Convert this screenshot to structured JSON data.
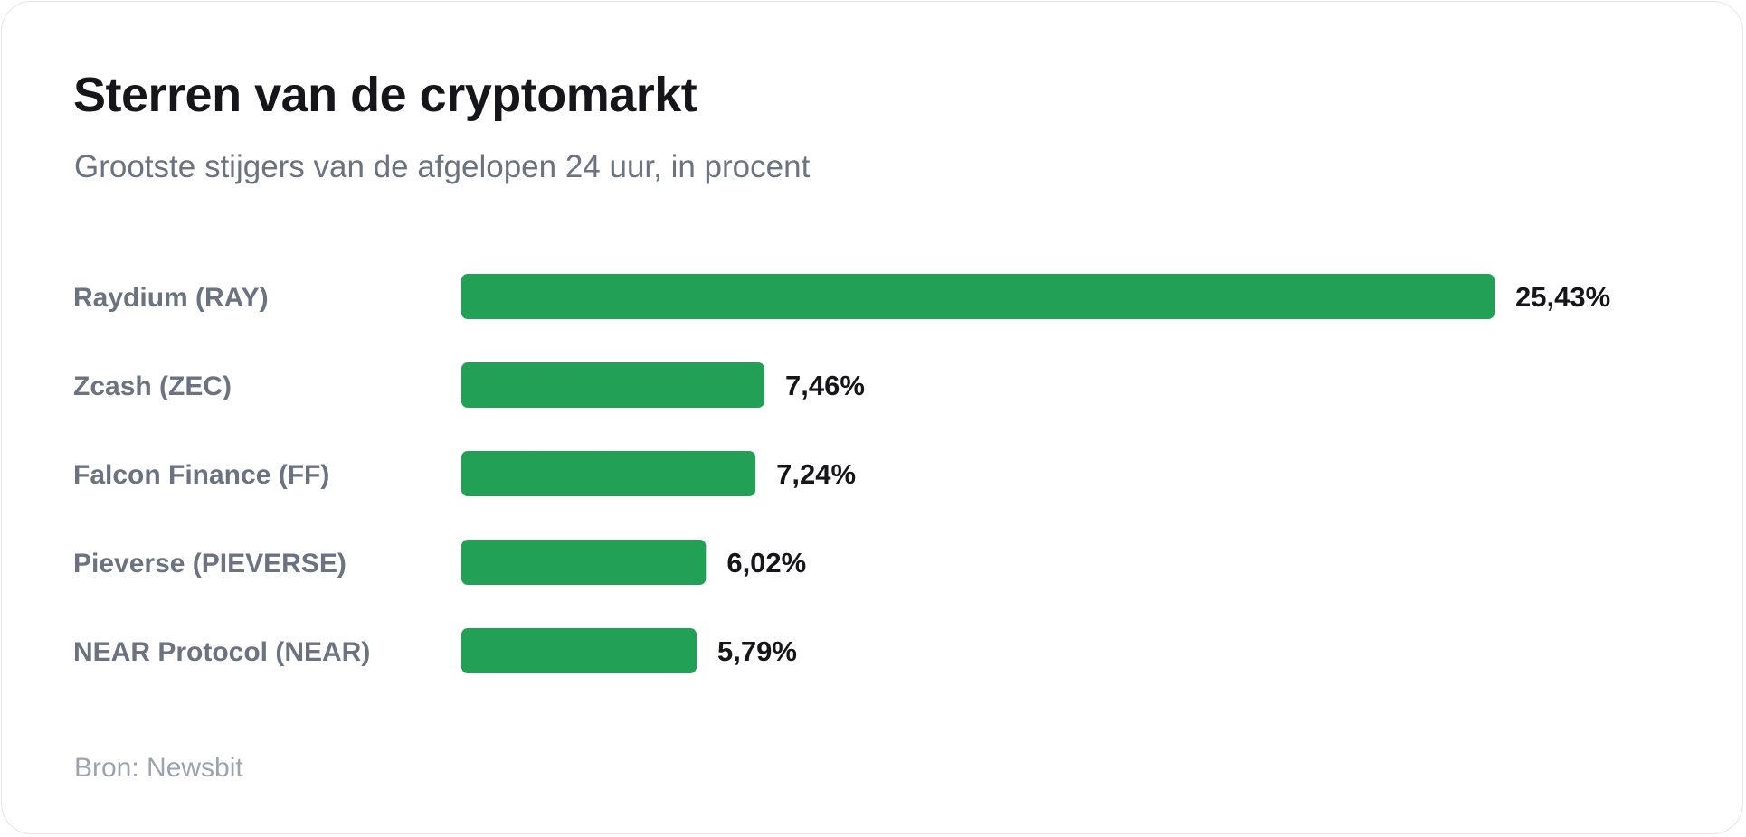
{
  "card": {
    "title": "Sterren van de cryptomarkt",
    "subtitle": "Grootste stijgers van de afgelopen 24 uur, in procent",
    "source": "Bron: Newsbit"
  },
  "colors": {
    "bar": "#22a055",
    "title": "#16161a",
    "category_label": "#6b7280",
    "value_label": "#16161a",
    "source": "#9ca3af"
  },
  "chart_data": {
    "type": "bar",
    "orientation": "horizontal",
    "title": "Sterren van de cryptomarkt",
    "subtitle": "Grootste stijgers van de afgelopen 24 uur, in procent",
    "categories": [
      "Raydium (RAY)",
      "Zcash (ZEC)",
      "Falcon Finance (FF)",
      "Pieverse (PIEVERSE)",
      "NEAR Protocol (NEAR)"
    ],
    "values": [
      25.43,
      7.46,
      7.24,
      6.02,
      5.79
    ],
    "value_labels": [
      "25,43%",
      "7,46%",
      "7,24%",
      "6,02%",
      "5,79%"
    ],
    "xlim": [
      0,
      25.43
    ],
    "grid": false,
    "legend": "none"
  }
}
